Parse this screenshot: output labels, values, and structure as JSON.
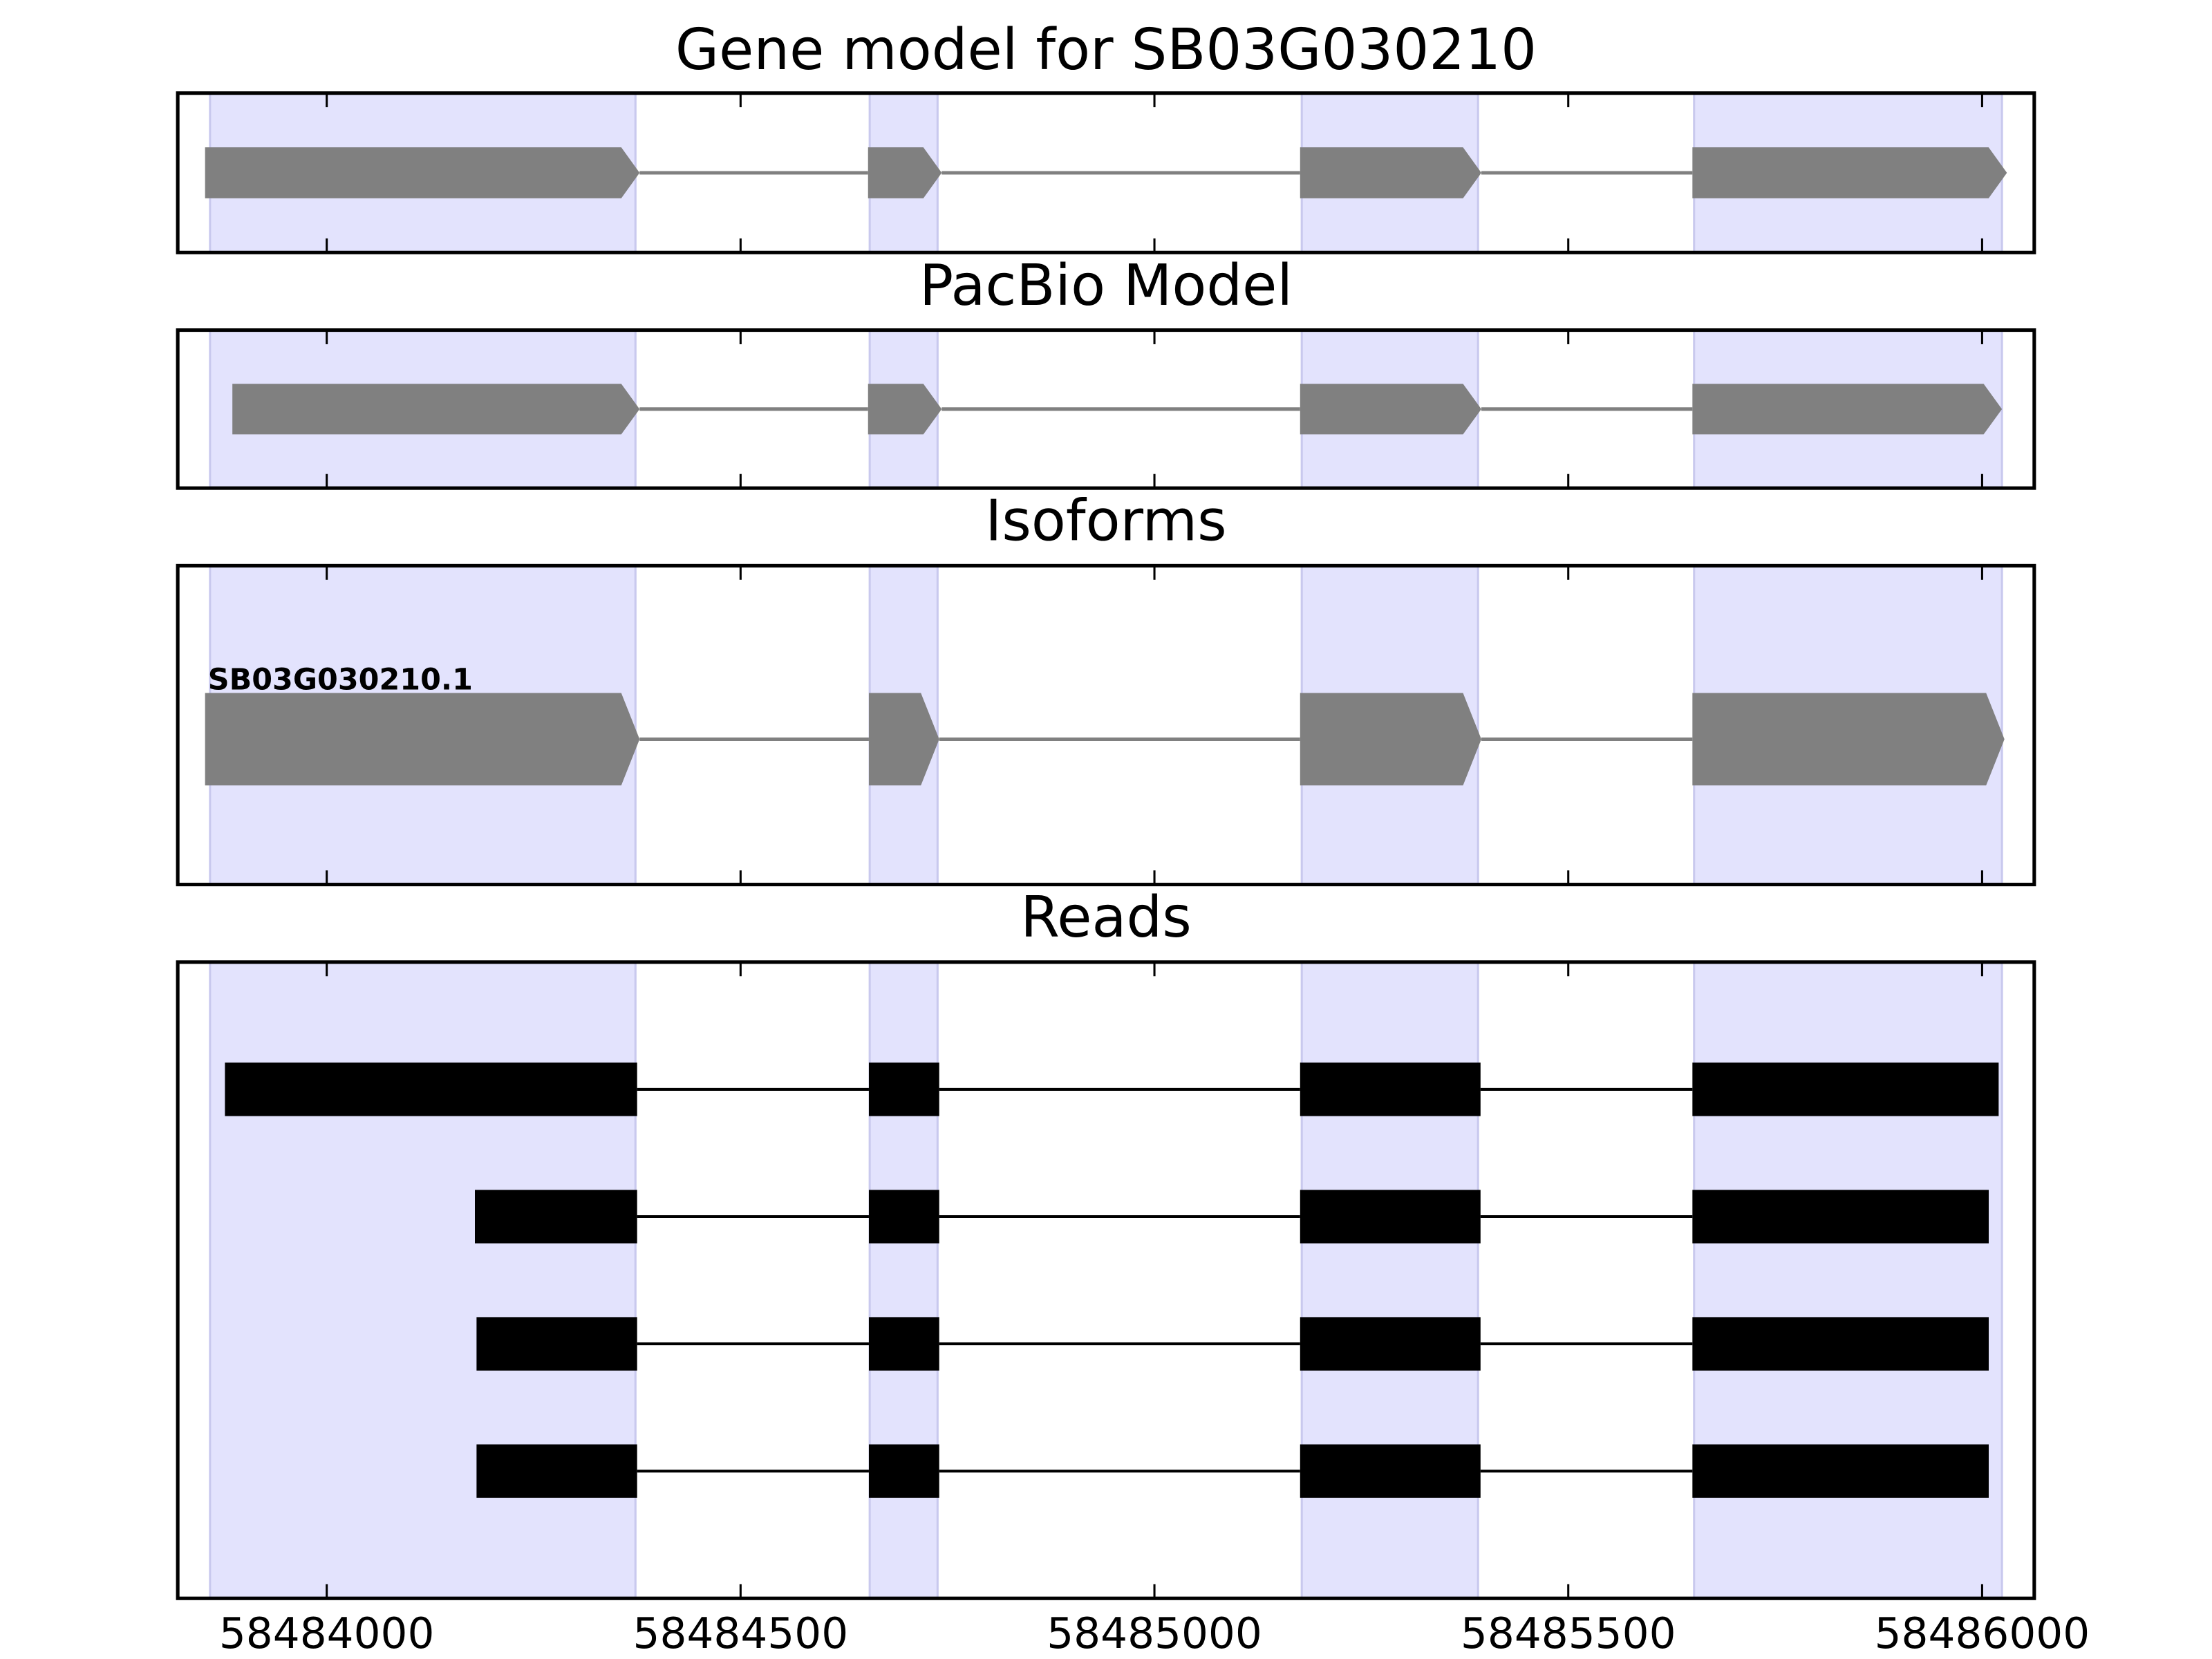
{
  "chart_data": [
    {
      "type": "gene-track",
      "title": "Gene model for SB03G030210",
      "xlim": [
        58483820,
        58486063
      ],
      "xticks": [
        58484000,
        58484500,
        58485000,
        58485500,
        58486000
      ],
      "highlights": [
        [
          58483859,
          58484373
        ],
        [
          58484656,
          58484738
        ],
        [
          58485178,
          58485391
        ],
        [
          58485652,
          58486024
        ]
      ],
      "color": "#808080",
      "shape": "arrow",
      "tracks": [
        {
          "exons": [
            [
              58483853,
              58484378
            ],
            [
              58484654,
              58484743
            ],
            [
              58485176,
              58485395
            ],
            [
              58485650,
              58486030
            ]
          ]
        }
      ]
    },
    {
      "type": "gene-track",
      "title": "PacBio Model",
      "xlim": [
        58483820,
        58486063
      ],
      "xticks": [
        58484000,
        58484500,
        58485000,
        58485500,
        58486000
      ],
      "highlights": [
        [
          58483859,
          58484373
        ],
        [
          58484656,
          58484738
        ],
        [
          58485178,
          58485391
        ],
        [
          58485652,
          58486024
        ]
      ],
      "color": "#808080",
      "shape": "arrow",
      "tracks": [
        {
          "exons": [
            [
              58483886,
              58484378
            ],
            [
              58484654,
              58484743
            ],
            [
              58485176,
              58485395
            ],
            [
              58485650,
              58486024
            ]
          ]
        }
      ]
    },
    {
      "type": "gene-track",
      "title": "Isoforms",
      "xlim": [
        58483820,
        58486063
      ],
      "xticks": [
        58484000,
        58484500,
        58485000,
        58485500,
        58486000
      ],
      "highlights": [
        [
          58483859,
          58484373
        ],
        [
          58484656,
          58484738
        ],
        [
          58485178,
          58485391
        ],
        [
          58485652,
          58486024
        ]
      ],
      "color": "#808080",
      "shape": "arrow",
      "tracks": [
        {
          "name": "SB03G030210.1",
          "exons": [
            [
              58483853,
              58484378
            ],
            [
              58484655,
              58484740
            ],
            [
              58485176,
              58485395
            ],
            [
              58485650,
              58486027
            ]
          ]
        }
      ]
    },
    {
      "type": "gene-track",
      "title": "Reads",
      "xlim": [
        58483820,
        58486063
      ],
      "xticks": [
        58484000,
        58484500,
        58485000,
        58485500,
        58486000
      ],
      "highlights": [
        [
          58483859,
          58484373
        ],
        [
          58484656,
          58484738
        ],
        [
          58485178,
          58485391
        ],
        [
          58485652,
          58486024
        ]
      ],
      "color": "#000000",
      "shape": "box",
      "tick_labels": true,
      "tracks": [
        {
          "exons": [
            [
              58483877,
              58484375
            ],
            [
              58484655,
              58484740
            ],
            [
              58485176,
              58485394
            ],
            [
              58485650,
              58486020
            ]
          ]
        },
        {
          "exons": [
            [
              58484179,
              58484375
            ],
            [
              58484655,
              58484740
            ],
            [
              58485176,
              58485394
            ],
            [
              58485650,
              58486008
            ]
          ]
        },
        {
          "exons": [
            [
              58484181,
              58484375
            ],
            [
              58484655,
              58484740
            ],
            [
              58485176,
              58485394
            ],
            [
              58485650,
              58486008
            ]
          ]
        },
        {
          "exons": [
            [
              58484181,
              58484375
            ],
            [
              58484655,
              58484740
            ],
            [
              58485176,
              58485394
            ],
            [
              58485650,
              58486008
            ]
          ]
        }
      ]
    }
  ]
}
